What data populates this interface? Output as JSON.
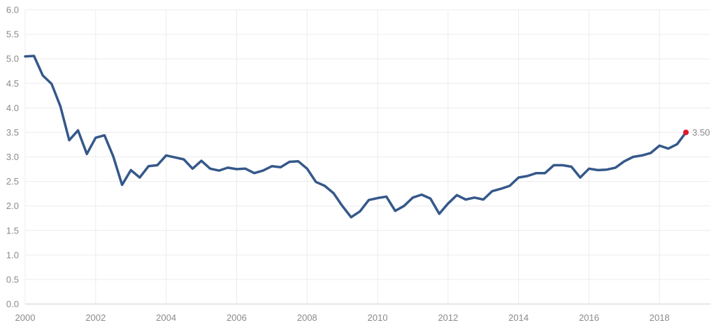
{
  "chart_data": {
    "type": "line",
    "title": "",
    "xlabel": "",
    "ylabel": "",
    "xlim": [
      2000,
      2018.75
    ],
    "ylim": [
      0,
      6
    ],
    "x_ticks": [
      2000,
      2002,
      2004,
      2006,
      2008,
      2010,
      2012,
      2014,
      2016,
      2018
    ],
    "x_tick_labels": [
      "2000",
      "2002",
      "2004",
      "2006",
      "2008",
      "2010",
      "2012",
      "2014",
      "2016",
      "2018"
    ],
    "y_ticks": [
      0,
      0.5,
      1,
      1.5,
      2,
      2.5,
      3,
      3.5,
      4,
      4.5,
      5,
      5.5,
      6
    ],
    "y_tick_labels": [
      "0.0",
      "0.5",
      "1.0",
      "1.5",
      "2.0",
      "2.5",
      "3.0",
      "3.5",
      "4.0",
      "4.5",
      "5.0",
      "5.5",
      "6.0"
    ],
    "grid": true,
    "legend": "none",
    "colors": {
      "line": "#35588a",
      "end_marker": "#e0192d",
      "grid": "#ececec",
      "tick_text": "#8a8a8a"
    },
    "end_label": "3.50",
    "series": [
      {
        "x": [
          2000.0,
          2000.25,
          2000.5,
          2000.75,
          2001.0,
          2001.25,
          2001.5,
          2001.75,
          2002.0,
          2002.25,
          2002.5,
          2002.75,
          2003.0,
          2003.25,
          2003.5,
          2003.75,
          2004.0,
          2004.25,
          2004.5,
          2004.75,
          2005.0,
          2005.25,
          2005.5,
          2005.75,
          2006.0,
          2006.25,
          2006.5,
          2006.75,
          2007.0,
          2007.25,
          2007.5,
          2007.75,
          2008.0,
          2008.25,
          2008.5,
          2008.75,
          2009.0,
          2009.25,
          2009.5,
          2009.75,
          2010.0,
          2010.25,
          2010.5,
          2010.75,
          2011.0,
          2011.25,
          2011.5,
          2011.75,
          2012.0,
          2012.25,
          2012.5,
          2012.75,
          2013.0,
          2013.25,
          2013.5,
          2013.75,
          2014.0,
          2014.25,
          2014.5,
          2014.75,
          2015.0,
          2015.25,
          2015.5,
          2015.75,
          2016.0,
          2016.25,
          2016.5,
          2016.75,
          2017.0,
          2017.25,
          2017.5,
          2017.75,
          2018.0,
          2018.25,
          2018.5,
          2018.75
        ],
        "values": [
          5.05,
          5.06,
          4.66,
          4.49,
          4.03,
          3.34,
          3.54,
          3.06,
          3.39,
          3.44,
          3.01,
          2.43,
          2.73,
          2.58,
          2.81,
          2.83,
          3.03,
          2.99,
          2.95,
          2.76,
          2.92,
          2.76,
          2.72,
          2.78,
          2.75,
          2.76,
          2.67,
          2.72,
          2.81,
          2.79,
          2.9,
          2.91,
          2.76,
          2.49,
          2.41,
          2.26,
          2.0,
          1.77,
          1.89,
          2.12,
          2.16,
          2.19,
          1.9,
          2.0,
          2.17,
          2.23,
          2.15,
          1.84,
          2.05,
          2.22,
          2.13,
          2.17,
          2.13,
          2.3,
          2.35,
          2.41,
          2.58,
          2.61,
          2.67,
          2.67,
          2.83,
          2.83,
          2.8,
          2.58,
          2.76,
          2.73,
          2.74,
          2.78,
          2.91,
          3.0,
          3.03,
          3.08,
          3.23,
          3.17,
          3.26,
          3.5
        ]
      }
    ]
  }
}
